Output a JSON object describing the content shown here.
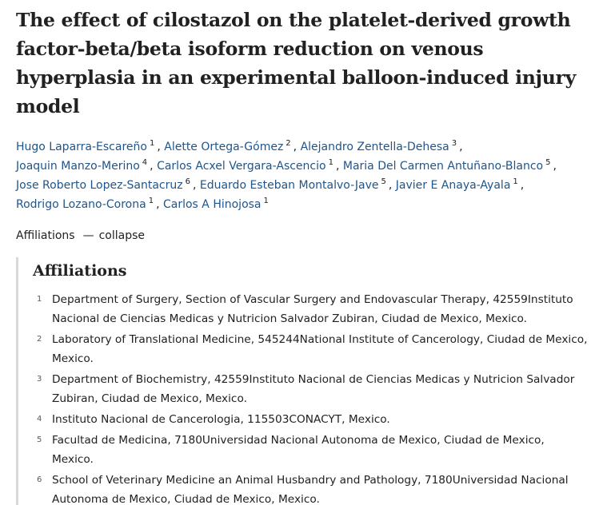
{
  "title": "The effect of cilostazol on the platelet-derived growth factor-beta/beta isoform reduction on venous hyperplasia in an experimental balloon-induced injury model",
  "authors": [
    {
      "name": "Hugo Laparra-Escareño",
      "sup": "1"
    },
    {
      "name": "Alette Ortega-Gómez",
      "sup": "2"
    },
    {
      "name": "Alejandro Zentella-Dehesa",
      "sup": "3"
    },
    {
      "name": "Joaquin Manzo-Merino",
      "sup": "4"
    },
    {
      "name": "Carlos Acxel Vergara-Ascencio",
      "sup": "1"
    },
    {
      "name": "Maria Del Carmen Antuñano-Blanco",
      "sup": "5"
    },
    {
      "name": "Jose Roberto Lopez-Santacruz",
      "sup": "6"
    },
    {
      "name": "Eduardo Esteban Montalvo-Jave",
      "sup": "5"
    },
    {
      "name": "Javier E Anaya-Ayala",
      "sup": "1"
    },
    {
      "name": "Rodrigo Lozano-Corona",
      "sup": "1"
    },
    {
      "name": "Carlos A Hinojosa",
      "sup": "1"
    }
  ],
  "affiliations_toggle": {
    "label": "Affiliations",
    "dash": "—",
    "action": "collapse"
  },
  "affiliations": {
    "heading": "Affiliations",
    "items": [
      {
        "num": "1",
        "text": "Department of Surgery, Section of Vascular Surgery and Endovascular Therapy, 42559Instituto Nacional de Ciencias Medicas y Nutricion Salvador Zubiran, Ciudad de Mexico, Mexico."
      },
      {
        "num": "2",
        "text": "Laboratory of Translational Medicine, 545244National Institute of Cancerology, Ciudad de Mexico, Mexico."
      },
      {
        "num": "3",
        "text": "Department of Biochemistry, 42559Instituto Nacional de Ciencias Medicas y Nutricion Salvador Zubiran, Ciudad de Mexico, Mexico."
      },
      {
        "num": "4",
        "text": "Instituto Nacional de Cancerologia, 115503CONACYT, Mexico."
      },
      {
        "num": "5",
        "text": "Facultad de Medicina, 7180Universidad Nacional Autonoma de Mexico, Ciudad de Mexico, Mexico."
      },
      {
        "num": "6",
        "text": "School of Veterinary Medicine an Animal Husbandry and Pathology, 7180Universidad Nacional Autonoma de Mexico, Ciudad de Mexico, Mexico."
      }
    ]
  },
  "colors": {
    "author_link": "#20558a",
    "text": "#212121",
    "panel_border": "#d9d9d9"
  }
}
